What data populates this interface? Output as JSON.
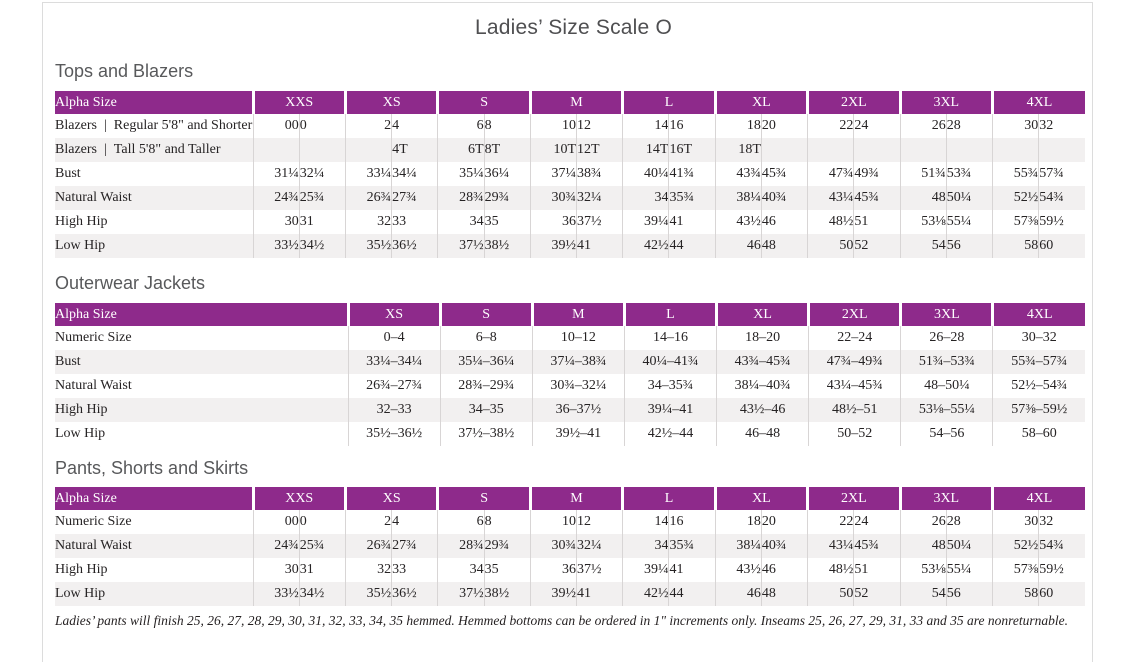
{
  "page": {
    "title": "Ladies’ Size Scale O"
  },
  "colors": {
    "accent_purple": "#8e2a8b",
    "row_stripe": "#f2f0f0",
    "divider": "#d8d5d5",
    "heading_gray": "#58595b"
  },
  "sections": [
    {
      "heading": "Tops and Blazers",
      "table": {
        "type": "paired",
        "corner_label": "Alpha Size",
        "groups": [
          "XXS",
          "XS",
          "S",
          "M",
          "L",
          "XL",
          "2XL",
          "3XL",
          "4XL"
        ],
        "rows": [
          {
            "label": "Blazers | Regular 5'8\" and Shorter",
            "values": [
              "00",
              "0",
              "2",
              "4",
              "6",
              "8",
              "10",
              "12",
              "14",
              "16",
              "18",
              "20",
              "22",
              "24",
              "26",
              "28",
              "30",
              "32"
            ]
          },
          {
            "label": "Blazers | Tall 5'8\" and Taller",
            "values": [
              "",
              "",
              "",
              "4T",
              "6T",
              "8T",
              "10T",
              "12T",
              "14T",
              "16T",
              "18T",
              "",
              "",
              "",
              "",
              "",
              "",
              ""
            ]
          },
          {
            "label": "Bust",
            "values": [
              "31¼",
              "32¼",
              "33¼",
              "34¼",
              "35¼",
              "36¼",
              "37¼",
              "38¾",
              "40¼",
              "41¾",
              "43¾",
              "45¾",
              "47¾",
              "49¾",
              "51¾",
              "53¾",
              "55¾",
              "57¾"
            ]
          },
          {
            "label": "Natural Waist",
            "values": [
              "24¾",
              "25¾",
              "26¾",
              "27¾",
              "28¾",
              "29¾",
              "30¾",
              "32¼",
              "34",
              "35¾",
              "38¼",
              "40¾",
              "43¼",
              "45¾",
              "48",
              "50¼",
              "52½",
              "54¾"
            ]
          },
          {
            "label": "High Hip",
            "values": [
              "30",
              "31",
              "32",
              "33",
              "34",
              "35",
              "36",
              "37½",
              "39¼",
              "41",
              "43½",
              "46",
              "48½",
              "51",
              "53⅛",
              "55¼",
              "57⅜",
              "59½"
            ]
          },
          {
            "label": "Low Hip",
            "values": [
              "33½",
              "34½",
              "35½",
              "36½",
              "37½",
              "38½",
              "39½",
              "41",
              "42½",
              "44",
              "46",
              "48",
              "50",
              "52",
              "54",
              "56",
              "58",
              "60"
            ]
          }
        ]
      }
    },
    {
      "heading": "Outerwear Jackets",
      "table": {
        "type": "single",
        "corner_label": "Alpha Size",
        "groups": [
          "XS",
          "S",
          "M",
          "L",
          "XL",
          "2XL",
          "3XL",
          "4XL"
        ],
        "rows": [
          {
            "label": "Numeric Size",
            "values": [
              "0–4",
              "6–8",
              "10–12",
              "14–16",
              "18–20",
              "22–24",
              "26–28",
              "30–32"
            ]
          },
          {
            "label": "Bust",
            "values": [
              "33¼–34¼",
              "35¼–36¼",
              "37¼–38¾",
              "40¼–41¾",
              "43¾–45¾",
              "47¾–49¾",
              "51¾–53¾",
              "55¾–57¾"
            ]
          },
          {
            "label": "Natural Waist",
            "values": [
              "26¾–27¾",
              "28¾–29¾",
              "30¾–32¼",
              "34–35¾",
              "38¼–40¾",
              "43¼–45¾",
              "48–50¼",
              "52½–54¾"
            ]
          },
          {
            "label": "High Hip",
            "values": [
              "32–33",
              "34–35",
              "36–37½",
              "39¼–41",
              "43½–46",
              "48½–51",
              "53⅛–55¼",
              "57⅜–59½"
            ]
          },
          {
            "label": "Low Hip",
            "values": [
              "35½–36½",
              "37½–38½",
              "39½–41",
              "42½–44",
              "46–48",
              "50–52",
              "54–56",
              "58–60"
            ]
          }
        ]
      }
    },
    {
      "heading": "Pants, Shorts and Skirts",
      "table": {
        "type": "paired",
        "corner_label": "Alpha Size",
        "groups": [
          "XXS",
          "XS",
          "S",
          "M",
          "L",
          "XL",
          "2XL",
          "3XL",
          "4XL"
        ],
        "rows": [
          {
            "label": "Numeric Size",
            "values": [
              "00",
              "0",
              "2",
              "4",
              "6",
              "8",
              "10",
              "12",
              "14",
              "16",
              "18",
              "20",
              "22",
              "24",
              "26",
              "28",
              "30",
              "32"
            ]
          },
          {
            "label": "Natural Waist",
            "values": [
              "24¾",
              "25¾",
              "26¾",
              "27¾",
              "28¾",
              "29¾",
              "30¾",
              "32¼",
              "34",
              "35¾",
              "38¼",
              "40¾",
              "43¼",
              "45¾",
              "48",
              "50¼",
              "52½",
              "54¾"
            ]
          },
          {
            "label": "High Hip",
            "values": [
              "30",
              "31",
              "32",
              "33",
              "34",
              "35",
              "36",
              "37½",
              "39¼",
              "41",
              "43½",
              "46",
              "48½",
              "51",
              "53⅛",
              "55¼",
              "57⅜",
              "59½"
            ]
          },
          {
            "label": "Low Hip",
            "values": [
              "33½",
              "34½",
              "35½",
              "36½",
              "37½",
              "38½",
              "39½",
              "41",
              "42½",
              "44",
              "46",
              "48",
              "50",
              "52",
              "54",
              "56",
              "58",
              "60"
            ]
          }
        ]
      }
    }
  ],
  "footnote": "Ladies’ pants will finish 25, 26, 27, 28, 29, 30, 31, 32, 33, 34, 35 hemmed. Hemmed bottoms can be ordered in 1\" increments only. Inseams 25, 26, 27, 29, 31, 33 and 35 are nonreturnable."
}
